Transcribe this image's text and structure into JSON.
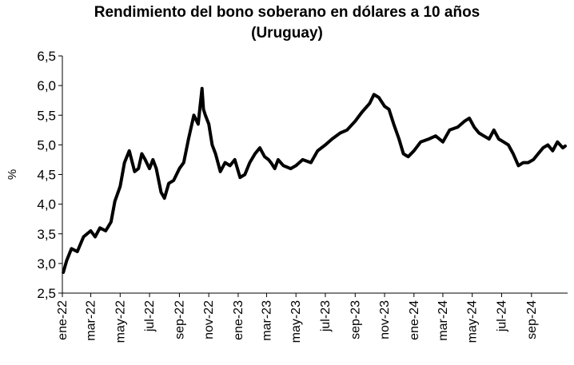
{
  "chart_data": {
    "type": "line",
    "title": "Rendimiento del bono soberano en dólares a 10 años",
    "subtitle": "(Uruguay)",
    "xlabel": "",
    "ylabel": "%",
    "ylim": [
      2.5,
      6.5
    ],
    "y_ticks": [
      "2,5",
      "3,0",
      "3,5",
      "4,0",
      "4,5",
      "5,0",
      "5,5",
      "6,0",
      "6,5"
    ],
    "x_ticks": [
      "ene-22",
      "mar-22",
      "may-22",
      "jul-22",
      "sep-22",
      "nov-22",
      "ene-23",
      "mar-23",
      "may-23",
      "jul-23",
      "sep-23",
      "nov-23",
      "ene-24",
      "mar-24",
      "may-24",
      "jul-24",
      "sep-24"
    ],
    "grid": false,
    "legend": "none",
    "colors": {
      "line": "#000000"
    },
    "series": [
      {
        "x": [
          "2022-01-03",
          "2022-01-10",
          "2022-01-20",
          "2022-02-01",
          "2022-02-14",
          "2022-03-01",
          "2022-03-10",
          "2022-03-20",
          "2022-04-01",
          "2022-04-12",
          "2022-04-20",
          "2022-05-01",
          "2022-05-10",
          "2022-05-20",
          "2022-05-31",
          "2022-06-08",
          "2022-06-15",
          "2022-06-22",
          "2022-07-01",
          "2022-07-08",
          "2022-07-15",
          "2022-07-25",
          "2022-08-01",
          "2022-08-10",
          "2022-08-20",
          "2022-09-01",
          "2022-09-10",
          "2022-09-20",
          "2022-10-01",
          "2022-10-10",
          "2022-10-18",
          "2022-10-21",
          "2022-10-25",
          "2022-11-01",
          "2022-11-08",
          "2022-11-15",
          "2022-11-25",
          "2022-12-05",
          "2022-12-15",
          "2022-12-25",
          "2023-01-05",
          "2023-01-15",
          "2023-01-25",
          "2023-02-05",
          "2023-02-15",
          "2023-02-25",
          "2023-03-05",
          "2023-03-10",
          "2023-03-18",
          "2023-03-25",
          "2023-04-05",
          "2023-04-20",
          "2023-05-01",
          "2023-05-15",
          "2023-06-01",
          "2023-06-15",
          "2023-07-01",
          "2023-07-15",
          "2023-08-01",
          "2023-08-15",
          "2023-09-01",
          "2023-09-15",
          "2023-10-01",
          "2023-10-10",
          "2023-10-20",
          "2023-11-01",
          "2023-11-10",
          "2023-11-20",
          "2023-12-01",
          "2023-12-10",
          "2023-12-20",
          "2024-01-01",
          "2024-01-15",
          "2024-02-01",
          "2024-02-15",
          "2024-03-01",
          "2024-03-15",
          "2024-04-01",
          "2024-04-15",
          "2024-04-25",
          "2024-05-05",
          "2024-05-15",
          "2024-05-25",
          "2024-06-05",
          "2024-06-15",
          "2024-06-25",
          "2024-07-05",
          "2024-07-15",
          "2024-07-25",
          "2024-08-05",
          "2024-08-15",
          "2024-08-25",
          "2024-09-05",
          "2024-09-15",
          "2024-09-25",
          "2024-10-05",
          "2024-10-15",
          "2024-10-25",
          "2024-11-05",
          "2024-11-10"
        ],
        "y": [
          2.85,
          3.05,
          3.25,
          3.2,
          3.45,
          3.55,
          3.45,
          3.6,
          3.55,
          3.7,
          4.05,
          4.3,
          4.7,
          4.9,
          4.55,
          4.6,
          4.85,
          4.75,
          4.6,
          4.75,
          4.6,
          4.2,
          4.1,
          4.35,
          4.4,
          4.6,
          4.7,
          5.1,
          5.5,
          5.35,
          5.95,
          5.6,
          5.5,
          5.35,
          5.0,
          4.85,
          4.55,
          4.7,
          4.65,
          4.75,
          4.45,
          4.5,
          4.7,
          4.85,
          4.95,
          4.8,
          4.75,
          4.7,
          4.6,
          4.75,
          4.65,
          4.6,
          4.65,
          4.75,
          4.7,
          4.9,
          5.0,
          5.1,
          5.2,
          5.25,
          5.4,
          5.55,
          5.7,
          5.85,
          5.8,
          5.65,
          5.6,
          5.35,
          5.1,
          4.85,
          4.8,
          4.9,
          5.05,
          5.1,
          5.15,
          5.05,
          5.25,
          5.3,
          5.4,
          5.45,
          5.3,
          5.2,
          5.15,
          5.1,
          5.25,
          5.1,
          5.05,
          5.0,
          4.85,
          4.65,
          4.7,
          4.7,
          4.75,
          4.85,
          4.95,
          5.0,
          4.9,
          5.05,
          4.95,
          4.98
        ]
      }
    ]
  }
}
